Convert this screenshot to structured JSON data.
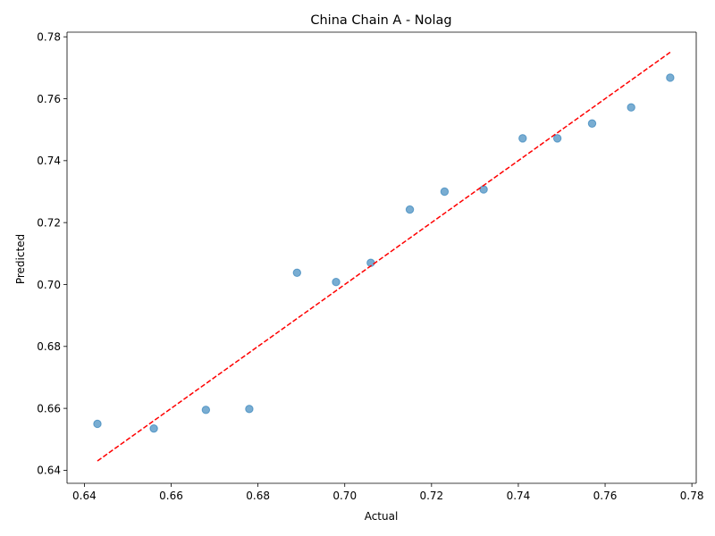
{
  "chart_data": {
    "type": "scatter",
    "title": "China Chain A - Nolag",
    "xlabel": "Actual",
    "ylabel": "Predicted",
    "xlim": [
      0.636,
      0.781
    ],
    "ylim": [
      0.6358,
      0.7815
    ],
    "x_ticks": [
      "0.64",
      "0.66",
      "0.68",
      "0.70",
      "0.72",
      "0.74",
      "0.76",
      "0.78"
    ],
    "y_ticks": [
      "0.64",
      "0.66",
      "0.68",
      "0.70",
      "0.72",
      "0.74",
      "0.76",
      "0.78"
    ],
    "grid": false,
    "points": [
      {
        "x": 0.643,
        "y": 0.655
      },
      {
        "x": 0.656,
        "y": 0.6535
      },
      {
        "x": 0.668,
        "y": 0.6595
      },
      {
        "x": 0.678,
        "y": 0.6598
      },
      {
        "x": 0.689,
        "y": 0.7038
      },
      {
        "x": 0.698,
        "y": 0.7008
      },
      {
        "x": 0.706,
        "y": 0.707
      },
      {
        "x": 0.715,
        "y": 0.7242
      },
      {
        "x": 0.723,
        "y": 0.73
      },
      {
        "x": 0.732,
        "y": 0.7307
      },
      {
        "x": 0.741,
        "y": 0.7472
      },
      {
        "x": 0.749,
        "y": 0.7472
      },
      {
        "x": 0.757,
        "y": 0.752
      },
      {
        "x": 0.766,
        "y": 0.7572
      },
      {
        "x": 0.775,
        "y": 0.7668
      }
    ],
    "reference_line": {
      "x": [
        0.643,
        0.775
      ],
      "y": [
        0.643,
        0.775
      ],
      "style": "dashed",
      "color": "#ff0000"
    },
    "marker_color": "#1f77b4"
  }
}
